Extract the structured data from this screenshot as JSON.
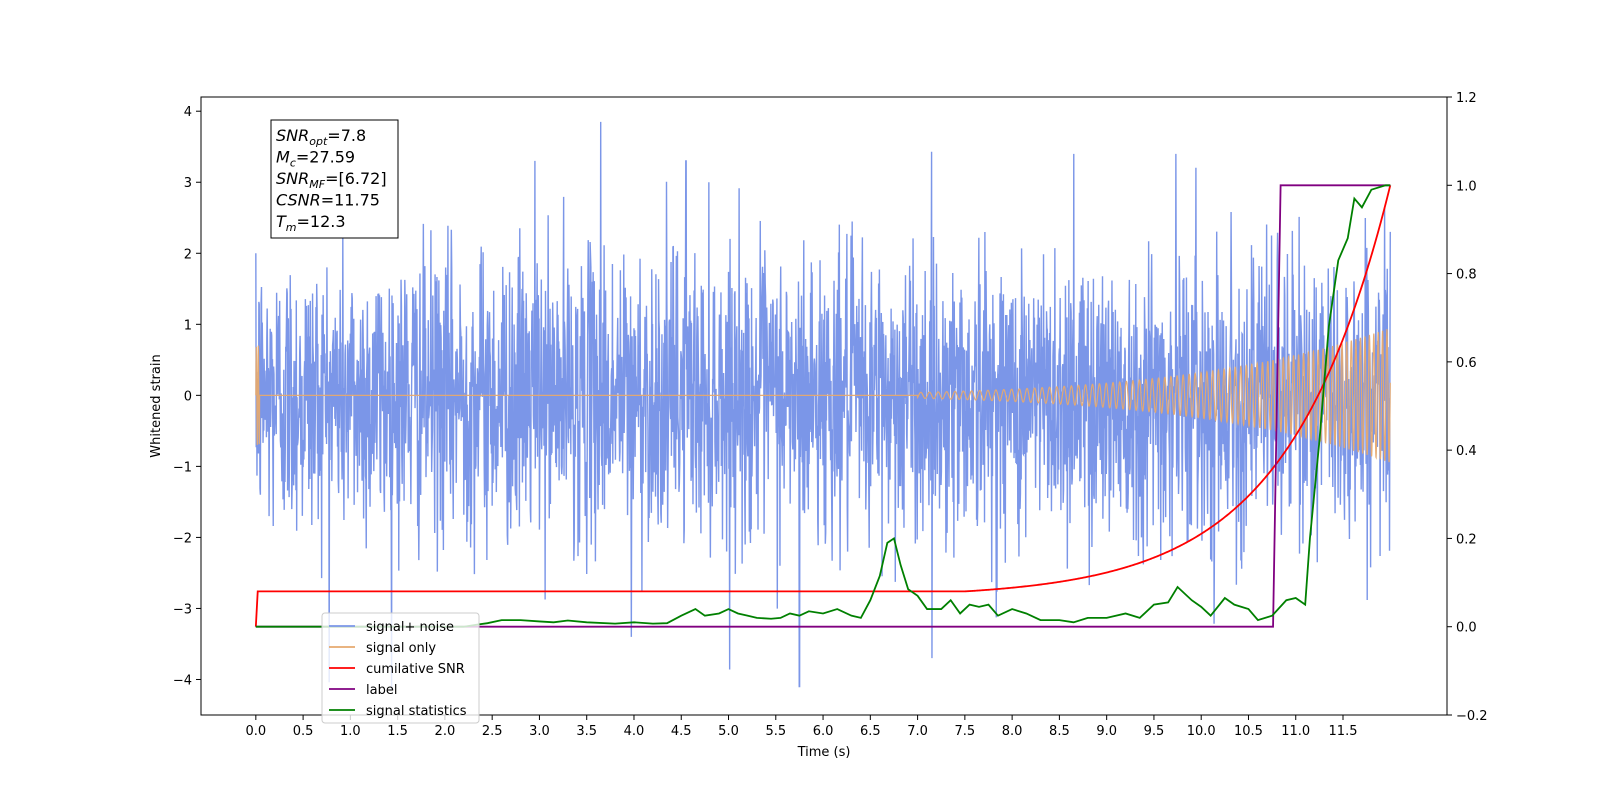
{
  "chart_data": {
    "type": "line",
    "xlabel": "Time (s)",
    "ylabel": "Whitened strain",
    "xlim": [
      -0.58,
      12.6
    ],
    "ylim": [
      -4.5,
      4.2
    ],
    "y2lim": [
      -0.2,
      1.2
    ],
    "x_ticks": [
      0.0,
      0.5,
      1.0,
      1.5,
      2.0,
      2.5,
      3.0,
      3.5,
      4.0,
      4.5,
      5.0,
      5.5,
      6.0,
      6.5,
      7.0,
      7.5,
      8.0,
      8.5,
      9.0,
      9.5,
      10.0,
      10.5,
      11.0,
      11.5
    ],
    "x_tick_labels": [
      "0.0",
      "0.5",
      "1.0",
      "1.5",
      "2.0",
      "2.5",
      "3.0",
      "3.5",
      "4.0",
      "4.5",
      "5.0",
      "5.5",
      "6.0",
      "6.5",
      "7.0",
      "7.5",
      "8.0",
      "8.5",
      "9.0",
      "9.5",
      "10.0",
      "10.5",
      "11.0",
      "11.5"
    ],
    "y_ticks": [
      -4,
      -3,
      -2,
      -1,
      0,
      1,
      2,
      3,
      4
    ],
    "y_tick_labels": [
      "−4",
      "−3",
      "−2",
      "−1",
      "0",
      "1",
      "2",
      "3",
      "4"
    ],
    "y2_ticks": [
      -0.2,
      0.0,
      0.2,
      0.4,
      0.6,
      0.8,
      1.0,
      1.2
    ],
    "y2_tick_labels": [
      "−0.2",
      "0.0",
      "0.2",
      "0.4",
      "0.6",
      "0.8",
      "1.0",
      "1.2"
    ],
    "grid": false,
    "legend_position": "lower-left",
    "info_box": [
      {
        "var": "SNR",
        "sub": "opt",
        "text": "=7.8"
      },
      {
        "var": "M",
        "sub": "c",
        "text": "=27.59"
      },
      {
        "var": "SNR",
        "sub": "MF",
        "text": "=[6.72]"
      },
      {
        "var": "CSNR",
        "sub": "",
        "text": "=11.75"
      },
      {
        "var": "T",
        "sub": "m",
        "text": "=12.3"
      }
    ],
    "series": [
      {
        "name": "signal+ noise",
        "color": "#7b96e8",
        "axis": "left",
        "style": "noise",
        "x_range": [
          0.0,
          12.0
        ],
        "envelope_std": 1.0,
        "extremes": [
          [
            0.0,
            2.0
          ],
          [
            2.95,
            3.3
          ],
          [
            3.65,
            3.85
          ],
          [
            4.55,
            3.3
          ],
          [
            8.65,
            3.4
          ],
          [
            9.73,
            3.4
          ],
          [
            11.25,
            3.5
          ],
          [
            5.75,
            -4.1
          ],
          [
            3.97,
            -3.4
          ],
          [
            7.15,
            -3.7
          ],
          [
            9.25,
            -3.5
          ]
        ]
      },
      {
        "name": "signal only",
        "color": "#e6a96f",
        "axis": "left",
        "style": "chirp",
        "x_range": [
          0.0,
          12.0
        ],
        "amplitude_end": 0.95,
        "amplitude_at_8": 0.1,
        "frequency_start": 8,
        "frequency_end": 22
      },
      {
        "name": "cumilative SNR",
        "color": "#ff0000",
        "axis": "right",
        "points": [
          [
            0.0,
            0.0
          ],
          [
            0.02,
            0.08
          ],
          [
            7.5,
            0.08
          ],
          [
            8.0,
            0.09
          ],
          [
            8.5,
            0.12
          ],
          [
            9.0,
            0.17
          ],
          [
            9.5,
            0.22
          ],
          [
            10.0,
            0.29
          ],
          [
            10.5,
            0.37
          ],
          [
            11.0,
            0.5
          ],
          [
            11.5,
            0.68
          ],
          [
            11.8,
            0.85
          ],
          [
            12.0,
            1.0
          ]
        ]
      },
      {
        "name": "label",
        "color": "#800080",
        "axis": "right",
        "points": [
          [
            0.0,
            0.0
          ],
          [
            10.76,
            0.0
          ],
          [
            10.84,
            1.0
          ],
          [
            12.0,
            1.0
          ]
        ]
      },
      {
        "name": "signal statistics",
        "color": "#008000",
        "axis": "right",
        "points": [
          [
            0.0,
            0.0
          ],
          [
            2.2,
            0.0
          ],
          [
            2.35,
            0.005
          ],
          [
            2.45,
            0.008
          ],
          [
            2.6,
            0.015
          ],
          [
            2.8,
            0.015
          ],
          [
            3.0,
            0.012
          ],
          [
            3.15,
            0.01
          ],
          [
            3.3,
            0.014
          ],
          [
            3.5,
            0.01
          ],
          [
            3.8,
            0.007
          ],
          [
            4.0,
            0.01
          ],
          [
            4.2,
            0.007
          ],
          [
            4.35,
            0.008
          ],
          [
            4.5,
            0.025
          ],
          [
            4.65,
            0.04
          ],
          [
            4.75,
            0.025
          ],
          [
            4.9,
            0.03
          ],
          [
            5.0,
            0.04
          ],
          [
            5.1,
            0.03
          ],
          [
            5.2,
            0.025
          ],
          [
            5.3,
            0.02
          ],
          [
            5.45,
            0.018
          ],
          [
            5.55,
            0.02
          ],
          [
            5.65,
            0.03
          ],
          [
            5.75,
            0.025
          ],
          [
            5.85,
            0.035
          ],
          [
            6.0,
            0.03
          ],
          [
            6.15,
            0.04
          ],
          [
            6.3,
            0.025
          ],
          [
            6.4,
            0.02
          ],
          [
            6.5,
            0.06
          ],
          [
            6.6,
            0.115
          ],
          [
            6.68,
            0.19
          ],
          [
            6.75,
            0.2
          ],
          [
            6.82,
            0.14
          ],
          [
            6.9,
            0.085
          ],
          [
            7.0,
            0.07
          ],
          [
            7.1,
            0.04
          ],
          [
            7.25,
            0.04
          ],
          [
            7.35,
            0.06
          ],
          [
            7.45,
            0.03
          ],
          [
            7.55,
            0.05
          ],
          [
            7.65,
            0.045
          ],
          [
            7.75,
            0.05
          ],
          [
            7.85,
            0.025
          ],
          [
            8.0,
            0.04
          ],
          [
            8.15,
            0.03
          ],
          [
            8.3,
            0.015
          ],
          [
            8.5,
            0.015
          ],
          [
            8.65,
            0.01
          ],
          [
            8.8,
            0.02
          ],
          [
            9.0,
            0.02
          ],
          [
            9.2,
            0.03
          ],
          [
            9.35,
            0.02
          ],
          [
            9.5,
            0.05
          ],
          [
            9.65,
            0.055
          ],
          [
            9.75,
            0.09
          ],
          [
            9.9,
            0.06
          ],
          [
            10.0,
            0.045
          ],
          [
            10.1,
            0.025
          ],
          [
            10.25,
            0.065
          ],
          [
            10.35,
            0.05
          ],
          [
            10.5,
            0.04
          ],
          [
            10.6,
            0.015
          ],
          [
            10.75,
            0.025
          ],
          [
            10.9,
            0.06
          ],
          [
            11.0,
            0.065
          ],
          [
            11.1,
            0.05
          ],
          [
            11.15,
            0.2
          ],
          [
            11.25,
            0.42
          ],
          [
            11.35,
            0.68
          ],
          [
            11.45,
            0.83
          ],
          [
            11.55,
            0.88
          ],
          [
            11.62,
            0.97
          ],
          [
            11.7,
            0.95
          ],
          [
            11.8,
            0.99
          ],
          [
            11.95,
            1.0
          ],
          [
            12.0,
            1.0
          ]
        ]
      }
    ]
  }
}
